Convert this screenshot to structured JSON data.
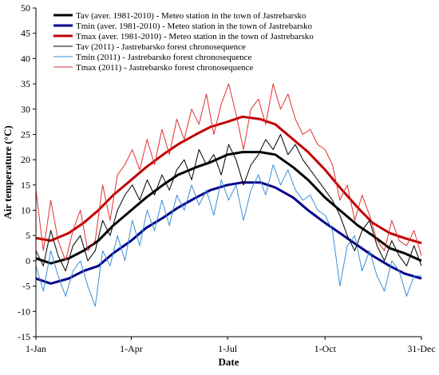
{
  "chart_data": {
    "type": "line",
    "title": "",
    "xlabel": "Date",
    "ylabel": "Air temperature (°C)",
    "xlim": [
      1,
      365
    ],
    "ylim": [
      -15,
      50
    ],
    "y_ticks": [
      -15,
      -10,
      -5,
      0,
      5,
      10,
      15,
      20,
      25,
      30,
      35,
      40,
      45,
      50
    ],
    "x_ticks": [
      {
        "day": 1,
        "label": "1-Jan"
      },
      {
        "day": 91,
        "label": "1-Apr"
      },
      {
        "day": 182,
        "label": "1-Jul"
      },
      {
        "day": 274,
        "label": "1-Oct"
      },
      {
        "day": 365,
        "label": "31-Dec"
      }
    ],
    "grid": false,
    "legend_position": "top-left",
    "series": [
      {
        "name": "Tav (aver. 1981-2010) - Meteo station in the town of Jastrebarsko",
        "color": "#000000",
        "width": "thick",
        "x": [
          1,
          15,
          32,
          46,
          60,
          74,
          91,
          105,
          121,
          135,
          152,
          166,
          182,
          196,
          213,
          227,
          244,
          258,
          274,
          288,
          305,
          319,
          335,
          349,
          365
        ],
        "y": [
          0.5,
          -0.5,
          0.5,
          2,
          4,
          7,
          10,
          12.5,
          15,
          17,
          18.5,
          19.5,
          21,
          21.5,
          21.5,
          21,
          18.5,
          16,
          12.5,
          10,
          7,
          5,
          2.5,
          1.5,
          0
        ]
      },
      {
        "name": "Tmin (aver. 1981-2010) - Meteo station in the town of Jastrebarsko",
        "color": "#00008b",
        "width": "thick",
        "x": [
          1,
          15,
          32,
          46,
          60,
          74,
          91,
          105,
          121,
          135,
          152,
          166,
          182,
          196,
          213,
          227,
          244,
          258,
          274,
          288,
          305,
          319,
          335,
          349,
          365
        ],
        "y": [
          -3.5,
          -4.5,
          -3.5,
          -2,
          -1,
          1.5,
          4,
          6.5,
          8.5,
          10.5,
          12.5,
          14,
          15,
          15.5,
          15.5,
          14.5,
          12.5,
          10,
          7.5,
          5.5,
          3,
          1,
          -1,
          -2.5,
          -3.5
        ]
      },
      {
        "name": "Tmax (aver. 1981-2010) - Meteo station in the town of Jastrebarsko",
        "color": "#c00000",
        "width": "thick",
        "x": [
          1,
          15,
          32,
          46,
          60,
          74,
          91,
          105,
          121,
          135,
          152,
          166,
          182,
          196,
          213,
          227,
          244,
          258,
          274,
          288,
          305,
          319,
          335,
          349,
          365
        ],
        "y": [
          4.5,
          4,
          5.5,
          7.5,
          10,
          13,
          16,
          18.5,
          21,
          23,
          25,
          26.5,
          27.5,
          28.5,
          28,
          27,
          24,
          21.5,
          18,
          14.5,
          10.5,
          7.5,
          5.5,
          4.5,
          3.5
        ]
      },
      {
        "name": "Tav (2011) - Jastrebarsko forest chronosequence",
        "color": "#000000",
        "width": "thin",
        "x": [
          1,
          8,
          15,
          22,
          29,
          36,
          43,
          50,
          57,
          64,
          71,
          78,
          85,
          92,
          99,
          106,
          113,
          120,
          127,
          134,
          141,
          148,
          155,
          162,
          169,
          176,
          183,
          190,
          197,
          204,
          211,
          218,
          225,
          232,
          239,
          246,
          253,
          260,
          267,
          274,
          281,
          288,
          295,
          302,
          309,
          316,
          323,
          330,
          337,
          344,
          351,
          358,
          365
        ],
        "y": [
          2,
          -1,
          6,
          1,
          -2,
          3,
          5,
          0,
          2,
          8,
          5,
          10,
          13,
          15,
          12,
          16,
          13,
          17,
          14,
          18,
          20,
          16,
          22,
          19,
          21,
          17,
          23,
          20,
          15,
          19,
          21,
          24,
          22,
          25,
          21,
          23,
          20,
          18,
          16,
          14,
          12,
          9,
          5,
          2,
          6,
          8,
          3,
          0,
          4,
          1,
          -1,
          3,
          -1
        ]
      },
      {
        "name": "Tmin (2011) - Jastrebarsko forest chronosequence",
        "color": "#3a8fd8",
        "width": "thin",
        "x": [
          1,
          8,
          15,
          22,
          29,
          36,
          43,
          50,
          57,
          64,
          71,
          78,
          85,
          92,
          99,
          106,
          113,
          120,
          127,
          134,
          141,
          148,
          155,
          162,
          169,
          176,
          183,
          190,
          197,
          204,
          211,
          218,
          225,
          232,
          239,
          246,
          253,
          260,
          267,
          274,
          281,
          288,
          295,
          302,
          309,
          316,
          323,
          330,
          337,
          344,
          351,
          358,
          365
        ],
        "y": [
          -1,
          -6,
          2,
          -3,
          -7,
          -2,
          0,
          -5,
          -9,
          2,
          -1,
          5,
          0,
          8,
          3,
          10,
          6,
          12,
          7,
          13,
          10,
          15,
          11,
          14,
          9,
          16,
          12,
          15,
          8,
          14,
          17,
          13,
          19,
          15,
          18,
          14,
          12,
          13,
          10,
          9,
          6,
          -5,
          3,
          5,
          -2,
          2,
          -3,
          -6,
          0,
          -2,
          -7,
          -3,
          -3
        ]
      },
      {
        "name": "Tmax (2011) - Jastrebarsko forest chronosequence",
        "color": "#e03030",
        "width": "thin",
        "x": [
          1,
          8,
          15,
          22,
          29,
          36,
          43,
          50,
          57,
          64,
          71,
          78,
          85,
          92,
          99,
          106,
          113,
          120,
          127,
          134,
          141,
          148,
          155,
          162,
          169,
          176,
          183,
          190,
          197,
          204,
          211,
          218,
          225,
          232,
          239,
          246,
          253,
          260,
          267,
          274,
          281,
          288,
          295,
          302,
          309,
          316,
          323,
          330,
          337,
          344,
          351,
          358,
          365
        ],
        "y": [
          14,
          2,
          12,
          4,
          0,
          6,
          10,
          2,
          4,
          15,
          8,
          17,
          19,
          22,
          18,
          24,
          19,
          26,
          21,
          28,
          24,
          30,
          27,
          33,
          25,
          31,
          35,
          29,
          22,
          30,
          32,
          27,
          35,
          30,
          33,
          28,
          25,
          26,
          23,
          22,
          19,
          12,
          15,
          8,
          13,
          9,
          4,
          2,
          8,
          4,
          3,
          6,
          1
        ]
      }
    ]
  }
}
